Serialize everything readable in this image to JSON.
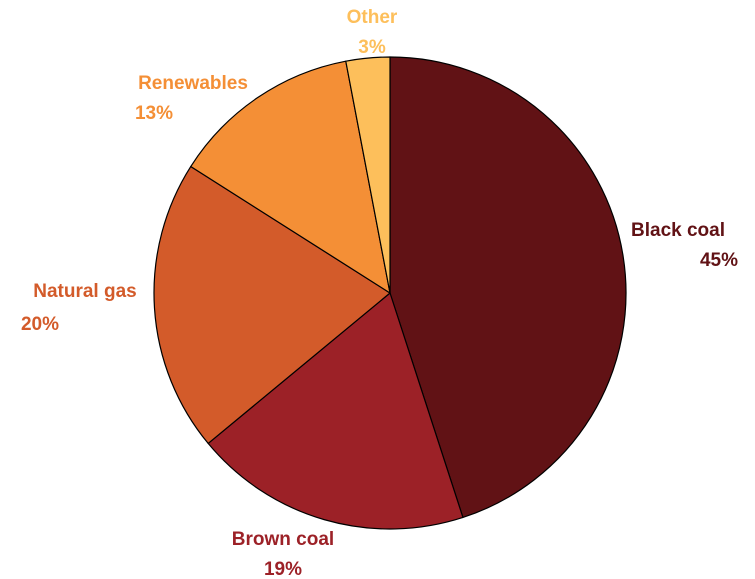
{
  "chart_data": {
    "type": "pie",
    "start_angle_deg": 0,
    "direction": "clockwise",
    "slices": [
      {
        "label": "Black coal",
        "value_label": "45%",
        "value": 45,
        "color": "#611215"
      },
      {
        "label": "Brown coal",
        "value_label": "19%",
        "value": 19,
        "color": "#9c2127"
      },
      {
        "label": "Natural gas",
        "value_label": "20%",
        "value": 20,
        "color": "#d35b2a"
      },
      {
        "label": "Renewables",
        "value_label": "13%",
        "value": 13,
        "color": "#f48f36"
      },
      {
        "label": "Other",
        "value_label": "3%",
        "value": 3,
        "color": "#fdbf5b"
      }
    ],
    "slice_border_color": "#000000"
  }
}
